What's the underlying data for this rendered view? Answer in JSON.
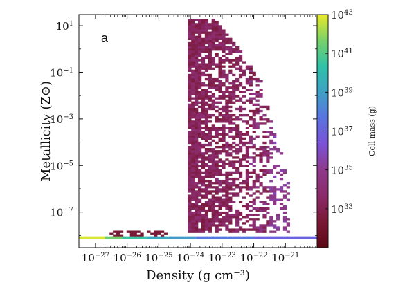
{
  "chart_data": {
    "type": "heatmap",
    "panel_label": "a",
    "xlabel": "Density (g cm⁻³)",
    "ylabel": "Metallicity (Z⊙)",
    "x_scale": "log",
    "y_scale": "log",
    "xlim": [
      3e-28,
      1e-20
    ],
    "ylim": [
      3e-09,
      30
    ],
    "x_ticks": [
      {
        "value": 1e-27,
        "base": "10",
        "exp": "-27"
      },
      {
        "value": 1e-26,
        "base": "10",
        "exp": "-26"
      },
      {
        "value": 1e-25,
        "base": "10",
        "exp": "-25"
      },
      {
        "value": 1e-24,
        "base": "10",
        "exp": "-24"
      },
      {
        "value": 1e-23,
        "base": "10",
        "exp": "-23"
      },
      {
        "value": 1e-22,
        "base": "10",
        "exp": "-22"
      },
      {
        "value": 1e-21,
        "base": "10",
        "exp": "-21"
      }
    ],
    "y_ticks": [
      {
        "value": 1e-07,
        "base": "10",
        "exp": "-7"
      },
      {
        "value": 1e-05,
        "base": "10",
        "exp": "-5"
      },
      {
        "value": 0.001,
        "base": "10",
        "exp": "-3"
      },
      {
        "value": 0.1,
        "base": "10",
        "exp": "-1"
      },
      {
        "value": 10,
        "base": "10",
        "exp": "1"
      }
    ],
    "colorbar": {
      "label": "Cell mass (g)",
      "scale": "log",
      "range": [
        1e+31,
        1e+43
      ],
      "ticks": [
        {
          "value": 1e+33,
          "base": "10",
          "exp": "33"
        },
        {
          "value": 1e+35,
          "base": "10",
          "exp": "35"
        },
        {
          "value": 1e+37,
          "base": "10",
          "exp": "37"
        },
        {
          "value": 1e+39,
          "base": "10",
          "exp": "39"
        },
        {
          "value": 1e+41,
          "base": "10",
          "exp": "41"
        },
        {
          "value": 1e+43,
          "base": "10",
          "exp": "43"
        }
      ],
      "colormap": [
        "#5c0a14",
        "#7a1836",
        "#8a2a6a",
        "#8e3a8a",
        "#7b52d6",
        "#5a74e0",
        "#3fa0c4",
        "#2fc2a8",
        "#7ad06a",
        "#e9ea2a"
      ]
    },
    "floor_band": {
      "metallicity": 8e-09,
      "segments": [
        {
          "density_range": [
            3e-28,
            2e-27
          ],
          "log_mass": 42.8
        },
        {
          "density_range": [
            2e-27,
            7e-27
          ],
          "log_mass": 41.5
        },
        {
          "density_range": [
            7e-27,
            4e-26
          ],
          "log_mass": 40.5
        },
        {
          "density_range": [
            4e-26,
            2e-25
          ],
          "log_mass": 39.3
        },
        {
          "density_range": [
            2e-25,
            1.5e-24
          ],
          "log_mass": 38.8
        },
        {
          "density_range": [
            1.5e-24,
            1e-22
          ],
          "log_mass": 37.8
        },
        {
          "density_range": [
            1e-22,
            1e-20
          ],
          "log_mass": 37.0
        }
      ]
    },
    "main_region": {
      "description": "high-density cells span metallicity 1e-8 to 20 Zsun at densities above ~1e-24 g cm^-3",
      "density_min": 9e-25,
      "density_max": 1.5e-21,
      "metallicity_min": 1.2e-08,
      "metallicity_max": 20,
      "typical_log_mass": [
        32.5,
        34.0
      ],
      "high_density_log_mass": [
        34.5,
        35.8
      ]
    },
    "low_density_patch": {
      "density_range": [
        2.5e-27,
        2e-25
      ],
      "metallicity_range": [
        8.5e-09,
        1.5e-08
      ],
      "log_mass": 32.3
    }
  }
}
